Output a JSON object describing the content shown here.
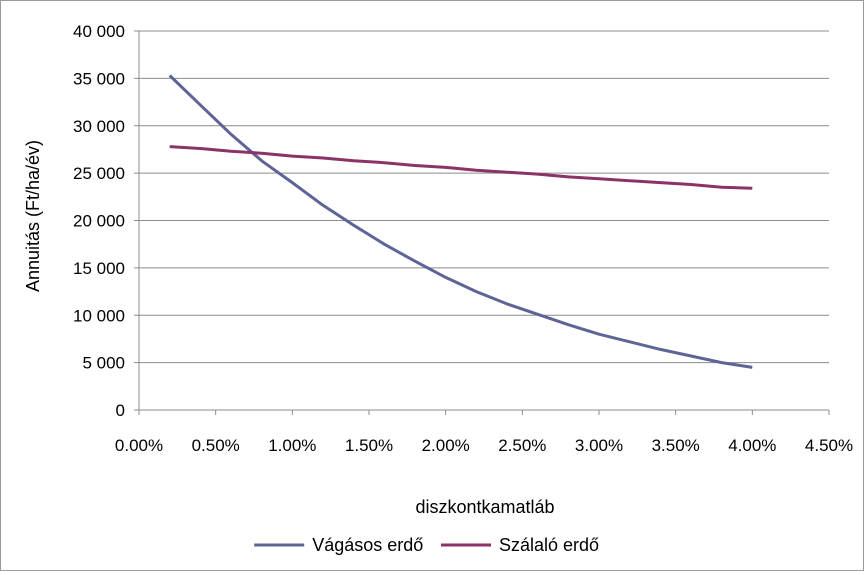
{
  "chart_data": {
    "type": "line",
    "title": "",
    "xlabel": "diszkontkamatláb",
    "ylabel": "Annuitás (Ft/ha/év)",
    "xlim": [
      0.0,
      4.5
    ],
    "ylim": [
      0,
      40000
    ],
    "x_ticks": [
      "0.00%",
      "0.50%",
      "1.00%",
      "1.50%",
      "2.00%",
      "2.50%",
      "3.00%",
      "3.50%",
      "4.00%",
      "4.50%"
    ],
    "y_ticks": [
      "0",
      "5 000",
      "10 000",
      "15 000",
      "20 000",
      "25 000",
      "30 000",
      "35 000",
      "40 000"
    ],
    "grid": "horizontal",
    "legend_position": "bottom",
    "series": [
      {
        "name": "Vágásos erdő",
        "color": "#5e6496",
        "x": [
          0.2,
          0.4,
          0.6,
          0.8,
          1.0,
          1.2,
          1.4,
          1.6,
          1.8,
          2.0,
          2.2,
          2.4,
          2.6,
          2.8,
          3.0,
          3.2,
          3.4,
          3.6,
          3.8,
          4.0
        ],
        "values": [
          35300,
          32200,
          29100,
          26300,
          24000,
          21600,
          19500,
          17500,
          15700,
          14000,
          12500,
          11200,
          10100,
          9000,
          8000,
          7200,
          6400,
          5700,
          5000,
          4500
        ]
      },
      {
        "name": "Szálaló erdő",
        "color": "#8b3266",
        "x": [
          0.2,
          0.4,
          0.6,
          0.8,
          1.0,
          1.2,
          1.4,
          1.6,
          1.8,
          2.0,
          2.2,
          2.4,
          2.6,
          2.8,
          3.0,
          3.2,
          3.4,
          3.6,
          3.8,
          4.0
        ],
        "values": [
          27800,
          27600,
          27300,
          27100,
          26800,
          26600,
          26300,
          26100,
          25800,
          25600,
          25300,
          25100,
          24900,
          24600,
          24400,
          24200,
          24000,
          23800,
          23500,
          23400
        ]
      }
    ]
  }
}
